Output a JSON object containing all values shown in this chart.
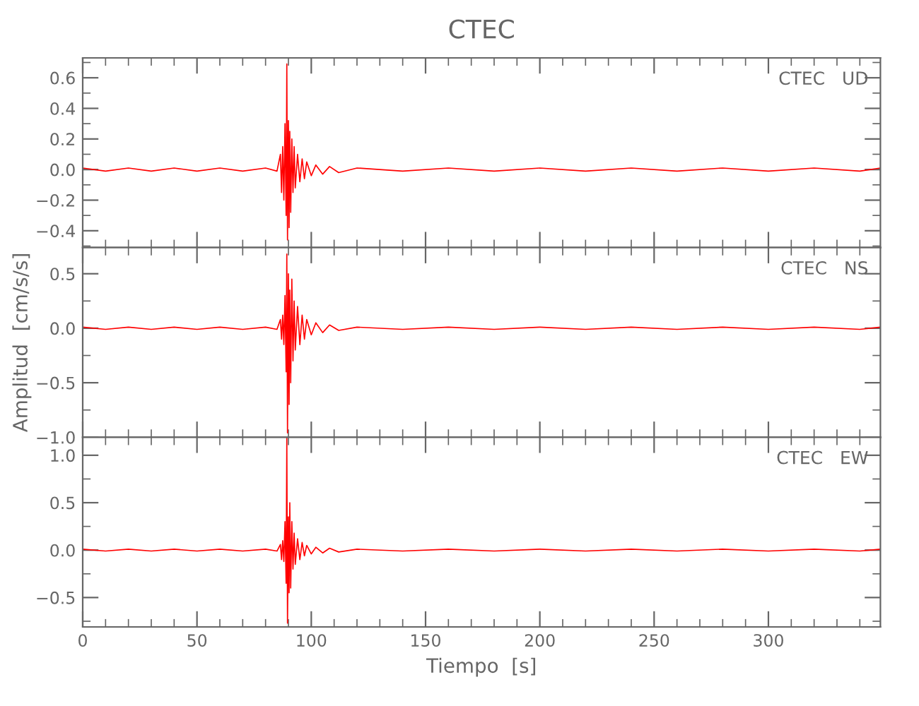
{
  "chart_data": [
    {
      "type": "line",
      "title": "CTEC",
      "annotations": [
        "CTEC   UD"
      ],
      "tick_labels": "y",
      "grid": false,
      "marker": "none",
      "line_style": "solid",
      "xlim": [
        0,
        349
      ],
      "ylim": [
        -0.51,
        0.73
      ],
      "yticks": [
        {
          "value": -0.4,
          "label": "−0.4"
        },
        {
          "value": -0.2,
          "label": "−0.2"
        },
        {
          "value": 0,
          "label": "0.0"
        },
        {
          "value": 0.2,
          "label": "0.2"
        },
        {
          "value": 0.4,
          "label": "0.4"
        },
        {
          "value": 0.6,
          "label": "0.6"
        }
      ],
      "series": [
        {
          "color": "#ff0000",
          "x": [
            0,
            10,
            20,
            30,
            40,
            50,
            60,
            70,
            80,
            85,
            86.5,
            87,
            87.5,
            88,
            88.5,
            89,
            89.3,
            89.6,
            90,
            90.3,
            90.6,
            91,
            91.5,
            92,
            92.5,
            93,
            94,
            95,
            96,
            97,
            98,
            100,
            102,
            105,
            108,
            112,
            120,
            140,
            160,
            180,
            200,
            220,
            240,
            260,
            280,
            300,
            320,
            340,
            349
          ],
          "values": [
            0.01,
            -0.01,
            0.01,
            -0.01,
            0.01,
            -0.01,
            0.01,
            -0.01,
            0.01,
            -0.01,
            0.1,
            -0.15,
            0.15,
            -0.2,
            0.3,
            -0.3,
            0.69,
            -0.46,
            0.32,
            -0.38,
            0.25,
            -0.28,
            0.2,
            -0.15,
            0.15,
            -0.12,
            0.1,
            -0.08,
            0.07,
            -0.06,
            0.05,
            -0.04,
            0.03,
            -0.03,
            0.02,
            -0.02,
            0.01,
            -0.01,
            0.01,
            -0.01,
            0.01,
            -0.01,
            0.01,
            -0.01,
            0.01,
            -0.01,
            0.01,
            -0.01,
            0.01
          ]
        }
      ]
    },
    {
      "type": "line",
      "ylabel": "Amplitud  [cm/s/s]",
      "annotations": [
        "CTEC   NS"
      ],
      "tick_labels": "y",
      "grid": false,
      "marker": "none",
      "line_style": "solid",
      "xlim": [
        0,
        349
      ],
      "ylim": [
        -1.0,
        0.74
      ],
      "yticks": [
        {
          "value": -1.0,
          "label": "−1.0"
        },
        {
          "value": -0.5,
          "label": "−0.5"
        },
        {
          "value": 0,
          "label": "0.0"
        },
        {
          "value": 0.5,
          "label": "0.5"
        }
      ],
      "series": [
        {
          "color": "#ff0000",
          "x": [
            0,
            10,
            20,
            30,
            40,
            50,
            60,
            70,
            80,
            85,
            86.5,
            87,
            87.5,
            88,
            88.5,
            89,
            89.3,
            89.6,
            90,
            90.3,
            90.6,
            91,
            91.5,
            92,
            92.5,
            93,
            94,
            95,
            96,
            97,
            98,
            100,
            102,
            105,
            108,
            112,
            120,
            140,
            160,
            180,
            200,
            220,
            240,
            260,
            280,
            300,
            320,
            340,
            349
          ],
          "values": [
            0.01,
            -0.01,
            0.01,
            -0.01,
            0.01,
            -0.01,
            0.01,
            -0.01,
            0.01,
            -0.01,
            0.08,
            -0.1,
            0.12,
            -0.15,
            0.3,
            -0.4,
            0.68,
            -0.96,
            0.5,
            -0.7,
            0.35,
            -0.5,
            0.45,
            -0.3,
            0.25,
            -0.2,
            0.2,
            -0.15,
            0.12,
            -0.1,
            0.08,
            -0.06,
            0.05,
            -0.04,
            0.03,
            -0.02,
            0.01,
            -0.01,
            0.01,
            -0.01,
            0.01,
            -0.01,
            0.01,
            -0.01,
            0.01,
            -0.01,
            0.01,
            -0.01,
            0.01
          ]
        }
      ]
    },
    {
      "type": "line",
      "xlabel": "Tiempo  [s]",
      "annotations": [
        "CTEC   EW"
      ],
      "grid": false,
      "marker": "none",
      "line_style": "solid",
      "xlim": [
        0,
        349
      ],
      "ylim": [
        -0.81,
        1.19
      ],
      "xticks": [
        0,
        50,
        100,
        150,
        200,
        250,
        300
      ],
      "yticks": [
        {
          "value": -0.5,
          "label": "−0.5"
        },
        {
          "value": 0,
          "label": "0.0"
        },
        {
          "value": 0.5,
          "label": "0.5"
        },
        {
          "value": 1.0,
          "label": "1.0"
        }
      ],
      "series": [
        {
          "color": "#ff0000",
          "x": [
            0,
            10,
            20,
            30,
            40,
            50,
            60,
            70,
            80,
            85,
            86.5,
            87,
            87.5,
            88,
            88.5,
            89,
            89.3,
            89.6,
            90,
            90.3,
            90.6,
            91,
            91.5,
            92,
            92.5,
            93,
            94,
            95,
            96,
            97,
            98,
            100,
            102,
            105,
            108,
            112,
            120,
            140,
            160,
            180,
            200,
            220,
            240,
            260,
            280,
            300,
            320,
            340,
            349
          ],
          "values": [
            0.01,
            -0.01,
            0.01,
            -0.01,
            0.01,
            -0.01,
            0.01,
            -0.01,
            0.01,
            -0.01,
            0.06,
            -0.1,
            0.1,
            -0.12,
            0.3,
            -0.35,
            1.18,
            -0.77,
            0.35,
            -0.45,
            0.5,
            -0.4,
            0.3,
            -0.2,
            0.18,
            -0.15,
            0.12,
            -0.1,
            0.08,
            -0.06,
            0.05,
            -0.04,
            0.03,
            -0.03,
            0.02,
            -0.02,
            0.01,
            -0.01,
            0.01,
            -0.01,
            0.01,
            -0.01,
            0.01,
            -0.01,
            0.01,
            -0.01,
            0.01,
            -0.01,
            0.01
          ]
        }
      ]
    }
  ]
}
